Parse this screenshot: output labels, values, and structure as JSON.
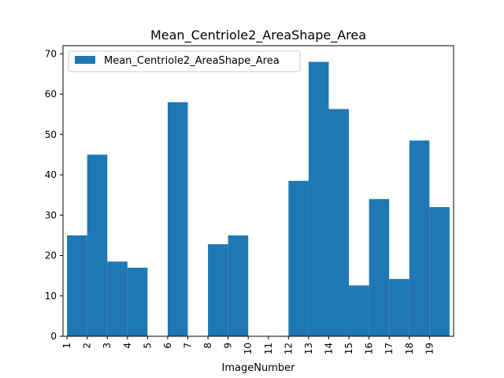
{
  "chart_data": {
    "type": "bar",
    "title": "Mean_Centriole2_AreaShape_Area",
    "xlabel": "ImageNumber",
    "ylabel": "",
    "categories": [
      "1",
      "2",
      "3",
      "4",
      "5",
      "6",
      "7",
      "8",
      "9",
      "10",
      "11",
      "12",
      "13",
      "14",
      "15",
      "16",
      "17",
      "18",
      "19"
    ],
    "series": [
      {
        "name": "Mean_Centriole2_AreaShape_Area",
        "color": "#1f77b4",
        "bins": [
          {
            "start": 1,
            "end": 2,
            "value": 25
          },
          {
            "start": 2,
            "end": 3,
            "value": 45
          },
          {
            "start": 3,
            "end": 4,
            "value": 18.5
          },
          {
            "start": 4,
            "end": 5,
            "value": 17
          },
          {
            "start": 6,
            "end": 7,
            "value": 58
          },
          {
            "start": 8,
            "end": 9,
            "value": 22.8
          },
          {
            "start": 9,
            "end": 10,
            "value": 25
          },
          {
            "start": 12,
            "end": 13,
            "value": 38.5
          },
          {
            "start": 13,
            "end": 14,
            "value": 68
          },
          {
            "start": 14,
            "end": 15,
            "value": 56.3
          },
          {
            "start": 15,
            "end": 16,
            "value": 12.6
          },
          {
            "start": 16,
            "end": 17,
            "value": 34
          },
          {
            "start": 17,
            "end": 18,
            "value": 14.2
          },
          {
            "start": 18,
            "end": 19,
            "value": 48.5
          },
          {
            "start": 19,
            "end": 20,
            "value": 32
          }
        ]
      }
    ],
    "xlim": [
      1,
      20
    ],
    "ylim": [
      0,
      72
    ],
    "yticks": [
      0,
      10,
      20,
      30,
      40,
      50,
      60,
      70
    ],
    "legend_position": "top-left",
    "grid": false
  }
}
